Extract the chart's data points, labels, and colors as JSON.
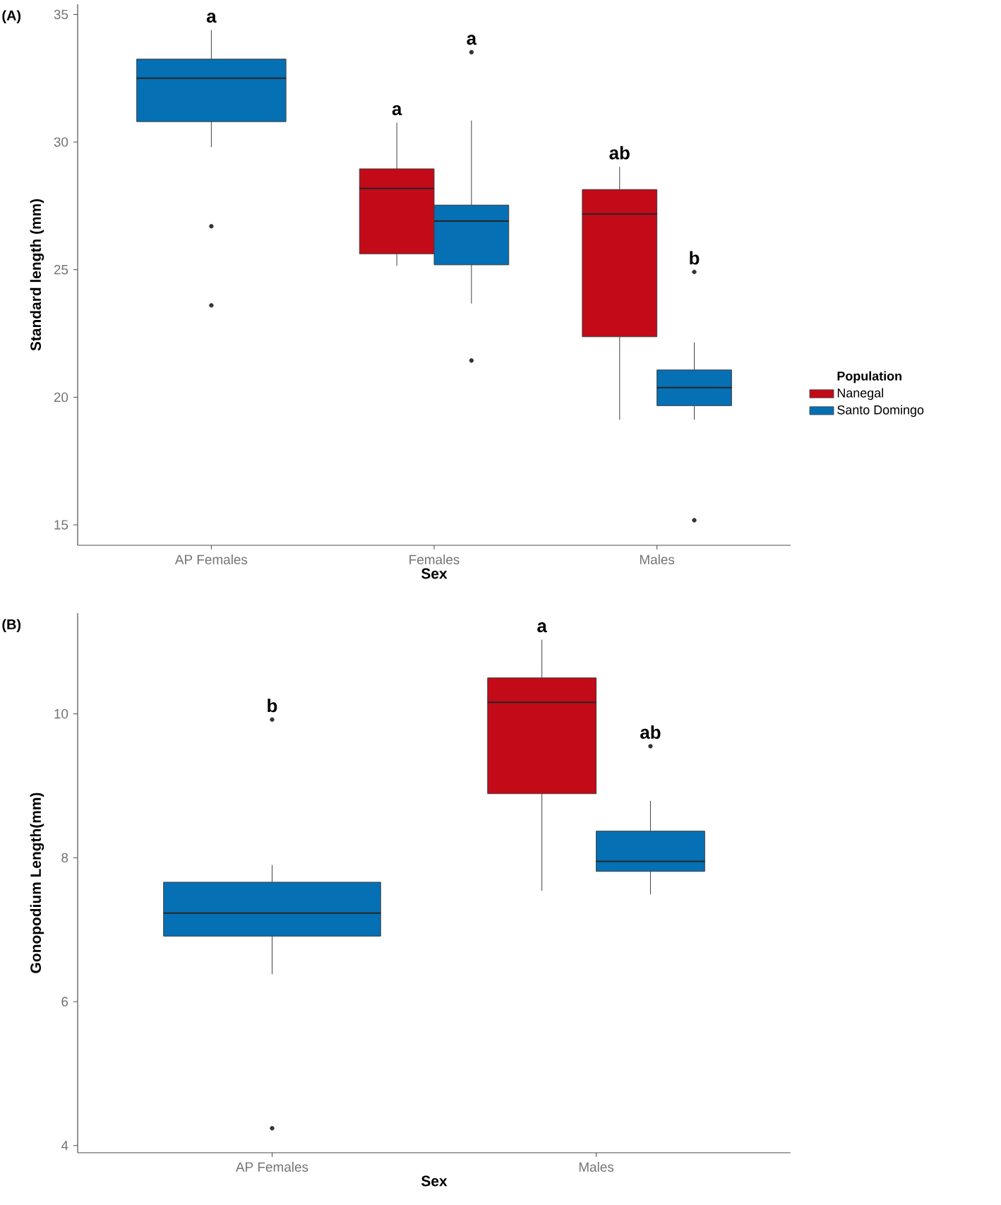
{
  "chart_data": [
    {
      "type": "box",
      "title": "(A)",
      "xlabel": "Sex",
      "ylabel": "Standard length (mm)",
      "categories": [
        "AP Females",
        "Females",
        "Males"
      ],
      "ylim": [
        14.2,
        35.4
      ],
      "yticks": [
        15,
        20,
        25,
        30,
        35
      ],
      "legend": "right",
      "legend_title": "Population",
      "series": [
        {
          "name": "Nanegal",
          "color": "#c20a19",
          "boxes": [
            null,
            {
              "low": 25.15,
              "q1": 25.62,
              "median": 28.18,
              "q3": 28.95,
              "high": 30.76
            },
            {
              "low": 19.12,
              "q1": 22.37,
              "median": 27.18,
              "q3": 28.14,
              "high": 29.03
            }
          ]
        },
        {
          "name": "Santo Domingo",
          "color": "#0570b4",
          "boxes": [
            {
              "low": 29.8,
              "q1": 30.8,
              "median": 32.5,
              "q3": 33.25,
              "high": 34.39,
              "outliers": [
                26.7,
                23.6
              ]
            },
            {
              "low": 23.67,
              "q1": 25.19,
              "median": 26.9,
              "q3": 27.53,
              "high": 30.84,
              "outliers": [
                33.52,
                21.44
              ]
            },
            {
              "low": 19.12,
              "q1": 19.67,
              "median": 20.38,
              "q3": 21.07,
              "high": 22.15,
              "outliers": [
                24.91,
                15.18
              ]
            }
          ]
        }
      ],
      "annotations": [
        "a",
        "a",
        "a",
        "ab",
        "b"
      ]
    },
    {
      "type": "box",
      "title": "(B)",
      "xlabel": "Sex",
      "ylabel": "Gonopodium Length(mm)",
      "categories": [
        "AP Females",
        "Males"
      ],
      "ylim": [
        3.9,
        11.4
      ],
      "yticks": [
        4,
        6,
        8,
        10
      ],
      "series": [
        {
          "color": "#c20a19",
          "boxes": [
            null,
            {
              "low": 7.54,
              "q1": 8.89,
              "median": 10.16,
              "q3": 10.5,
              "high": 11.03
            }
          ]
        },
        {
          "color": "#0570b4",
          "boxes": [
            {
              "low": 6.38,
              "q1": 6.91,
              "median": 7.23,
              "q3": 7.66,
              "high": 7.9,
              "outliers": [
                9.92,
                4.24
              ]
            },
            {
              "low": 7.49,
              "q1": 7.81,
              "median": 7.95,
              "q3": 8.37,
              "high": 8.79,
              "outliers": [
                9.55
              ]
            }
          ]
        }
      ],
      "annotations": [
        "b",
        "a",
        "ab"
      ]
    }
  ]
}
